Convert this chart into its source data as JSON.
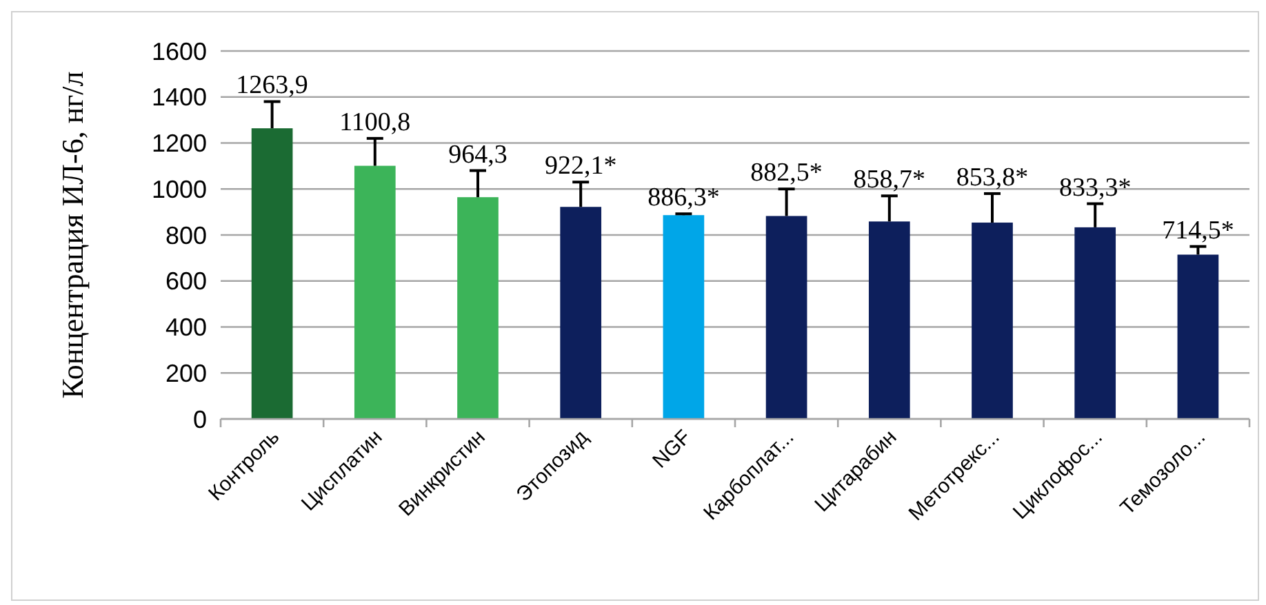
{
  "chart_data": {
    "type": "bar",
    "ylabel": "Концентрация ИЛ-6, нг/л",
    "categories": [
      "Контроль",
      "Цисплатин",
      "Винкристин",
      "Этопозид",
      "NGF",
      "Карбоплат...",
      "Цитарабин",
      "Метотрекс...",
      "Циклофос...",
      "Темозоло..."
    ],
    "values": [
      1263.9,
      1100.8,
      964.3,
      922.1,
      886.3,
      882.5,
      858.7,
      853.8,
      833.3,
      714.5
    ],
    "value_labels": [
      "1263,9",
      "1100,8",
      "964,3",
      "922,1*",
      "886,3*",
      "882,5*",
      "858,7*",
      "853,8*",
      "833,3*",
      "714,5*"
    ],
    "errors": [
      [
        1263.9,
        1380
      ],
      [
        1100.8,
        1220
      ],
      [
        964.3,
        1080
      ],
      [
        922.1,
        1030
      ],
      [
        886.3,
        892
      ],
      [
        882.5,
        1000
      ],
      [
        858.7,
        970
      ],
      [
        853.8,
        980
      ],
      [
        833.3,
        936
      ],
      [
        714.5,
        750
      ]
    ],
    "colors": [
      "#1b6b33",
      "#3cb459",
      "#3cb459",
      "#0d1f5c",
      "#00a6e8",
      "#0d1f5c",
      "#0d1f5c",
      "#0d1f5c",
      "#0d1f5c",
      "#0d1f5c"
    ],
    "ylim": [
      0,
      1600
    ],
    "yticks": [
      0,
      200,
      400,
      600,
      800,
      1000,
      1200,
      1400,
      1600
    ],
    "grid": "y"
  }
}
